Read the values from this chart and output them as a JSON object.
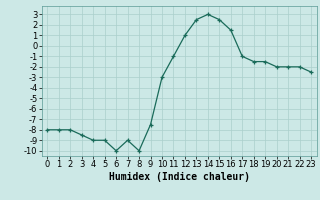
{
  "x": [
    0,
    1,
    2,
    3,
    4,
    5,
    6,
    7,
    8,
    9,
    10,
    11,
    12,
    13,
    14,
    15,
    16,
    17,
    18,
    19,
    20,
    21,
    22,
    23
  ],
  "y": [
    -8,
    -8,
    -8,
    -8.5,
    -9,
    -9,
    -10,
    -9,
    -10,
    -7.5,
    -3,
    -1,
    1,
    2.5,
    3,
    2.5,
    1.5,
    -1,
    -1.5,
    -1.5,
    -2,
    -2,
    -2,
    -2.5
  ],
  "line_color": "#1a6b5a",
  "bg_color": "#cce8e6",
  "grid_color": "#aacfcc",
  "xlabel": "Humidex (Indice chaleur)",
  "ylim": [
    -10.5,
    3.8
  ],
  "xlim": [
    -0.5,
    23.5
  ],
  "yticks": [
    -10,
    -9,
    -8,
    -7,
    -6,
    -5,
    -4,
    -3,
    -2,
    -1,
    0,
    1,
    2,
    3
  ],
  "xticks": [
    0,
    1,
    2,
    3,
    4,
    5,
    6,
    7,
    8,
    9,
    10,
    11,
    12,
    13,
    14,
    15,
    16,
    17,
    18,
    19,
    20,
    21,
    22,
    23
  ],
  "xlabel_fontsize": 7,
  "tick_fontsize": 6,
  "marker": "+",
  "marker_size": 3.5,
  "line_width": 0.9
}
